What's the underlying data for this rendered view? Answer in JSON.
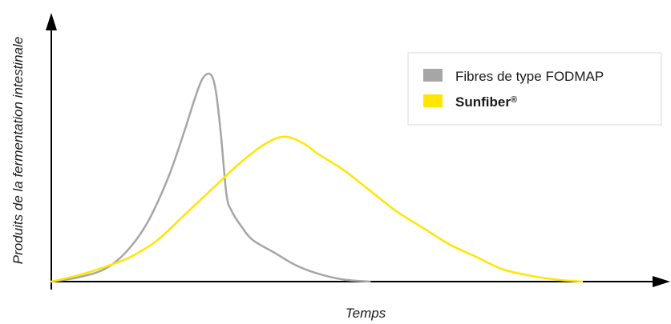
{
  "chart_data": {
    "type": "line",
    "title": "",
    "xlabel": "Temps",
    "ylabel": "Produits de la fermentation intestinale",
    "xlim": [
      0,
      100
    ],
    "ylim": [
      0,
      100
    ],
    "ticks": false,
    "grid": false,
    "legend_position": "top-right",
    "series": [
      {
        "name": "Fibres de type FODMAP",
        "color": "#a6a6a6",
        "x": [
          0,
          5,
          10,
          14,
          18,
          22,
          25,
          27,
          28.5,
          30,
          31,
          32,
          33,
          34,
          36,
          38,
          42,
          46,
          50,
          55,
          60
        ],
        "y": [
          0,
          2,
          6,
          14,
          28,
          50,
          72,
          88,
          98,
          100,
          92,
          70,
          42,
          34,
          26,
          20,
          14,
          8,
          4,
          1,
          0
        ]
      },
      {
        "name": "Sunfiber",
        "name_suffix": "®",
        "color": "#ffe600",
        "x": [
          0,
          5,
          10,
          15,
          20,
          25,
          30,
          35,
          40,
          44,
          48,
          50,
          55,
          60,
          65,
          70,
          75,
          80,
          85,
          90,
          95,
          100
        ],
        "y": [
          0,
          3,
          7,
          12,
          20,
          32,
          44,
          56,
          66,
          70,
          66,
          62,
          54,
          44,
          34,
          26,
          18,
          12,
          6,
          3,
          1,
          0
        ]
      }
    ]
  }
}
